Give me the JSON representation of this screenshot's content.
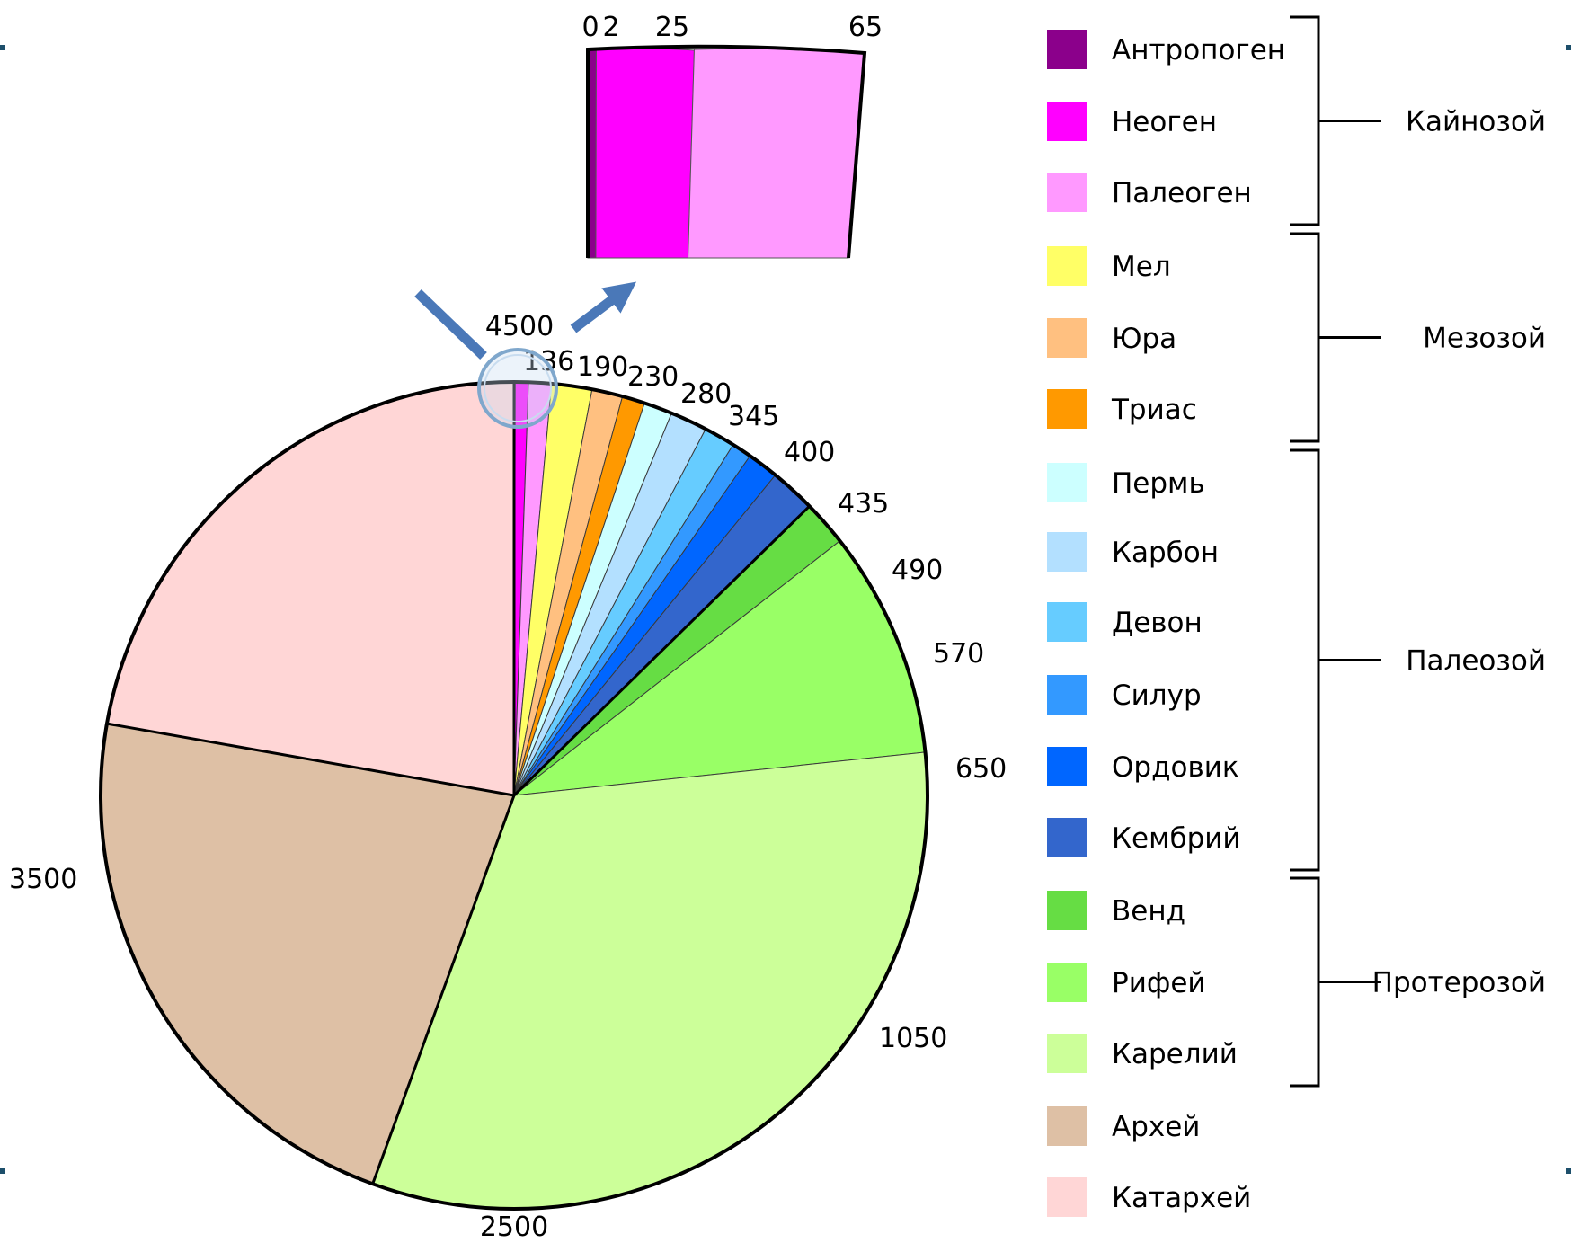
{
  "chart_data": {
    "type": "pie",
    "boundaries": [
      "0",
      "2",
      "25",
      "65",
      "136",
      "190",
      "230",
      "280",
      "345",
      "400",
      "435",
      "490",
      "570",
      "650",
      "1050",
      "2500",
      "3500",
      "4500"
    ],
    "boundary_values": [
      0,
      2,
      25,
      65,
      136,
      190,
      230,
      280,
      345,
      400,
      435,
      490,
      570,
      650,
      1050,
      2500,
      3500,
      4500
    ],
    "total": 4500,
    "slices": [
      {
        "name": "Антропоген",
        "from": 0,
        "to": 2,
        "color": "#8b008b"
      },
      {
        "name": "Неоген",
        "from": 2,
        "to": 25,
        "color": "#ff00ff"
      },
      {
        "name": "Палеоген",
        "from": 25,
        "to": 65,
        "color": "#ff99ff"
      },
      {
        "name": "Мел",
        "from": 65,
        "to": 136,
        "color": "#ffff66"
      },
      {
        "name": "Юра",
        "from": 136,
        "to": 190,
        "color": "#ffc080"
      },
      {
        "name": "Триас",
        "from": 190,
        "to": 230,
        "color": "#ff9900"
      },
      {
        "name": "Пермь",
        "from": 230,
        "to": 280,
        "color": "#ccffff"
      },
      {
        "name": "Карбон",
        "from": 280,
        "to": 345,
        "color": "#b3e0ff"
      },
      {
        "name": "Девон",
        "from": 345,
        "to": 400,
        "color": "#66ccff"
      },
      {
        "name": "Силур",
        "from": 400,
        "to": 435,
        "color": "#3399ff"
      },
      {
        "name": "Ордовик",
        "from": 435,
        "to": 490,
        "color": "#0066ff"
      },
      {
        "name": "Кембрий",
        "from": 490,
        "to": 570,
        "color": "#3366cc"
      },
      {
        "name": "Венд",
        "from": 570,
        "to": 650,
        "color": "#66dd44"
      },
      {
        "name": "Рифей",
        "from": 650,
        "to": 1050,
        "color": "#99ff66"
      },
      {
        "name": "Карелий",
        "from": 1050,
        "to": 2500,
        "color": "#ccff99"
      },
      {
        "name": "Архей",
        "from": 2500,
        "to": 3500,
        "color": "#dec0a5"
      },
      {
        "name": "Катархей",
        "from": 3500,
        "to": 4500,
        "color": "#ffd6d6"
      }
    ],
    "inset": {
      "labels": [
        "0",
        "2",
        "25",
        "65"
      ],
      "slices": [
        "Антропоген",
        "Неоген",
        "Палеоген"
      ]
    },
    "legend_groups": [
      {
        "label": "Кайнозой",
        "from_item": 0,
        "to_item": 2
      },
      {
        "label": "Мезозой",
        "from_item": 3,
        "to_item": 5
      },
      {
        "label": "Палеозой",
        "from_item": 6,
        "to_item": 11
      },
      {
        "label": "Протерозой",
        "from_item": 12,
        "to_item": 14
      }
    ],
    "legend_placement": "right"
  },
  "colors": {
    "outline": "#000000",
    "arrow": "#4a78b8",
    "magnifier": "#7fa7cc",
    "edge_marks": "#1d4f6b"
  }
}
